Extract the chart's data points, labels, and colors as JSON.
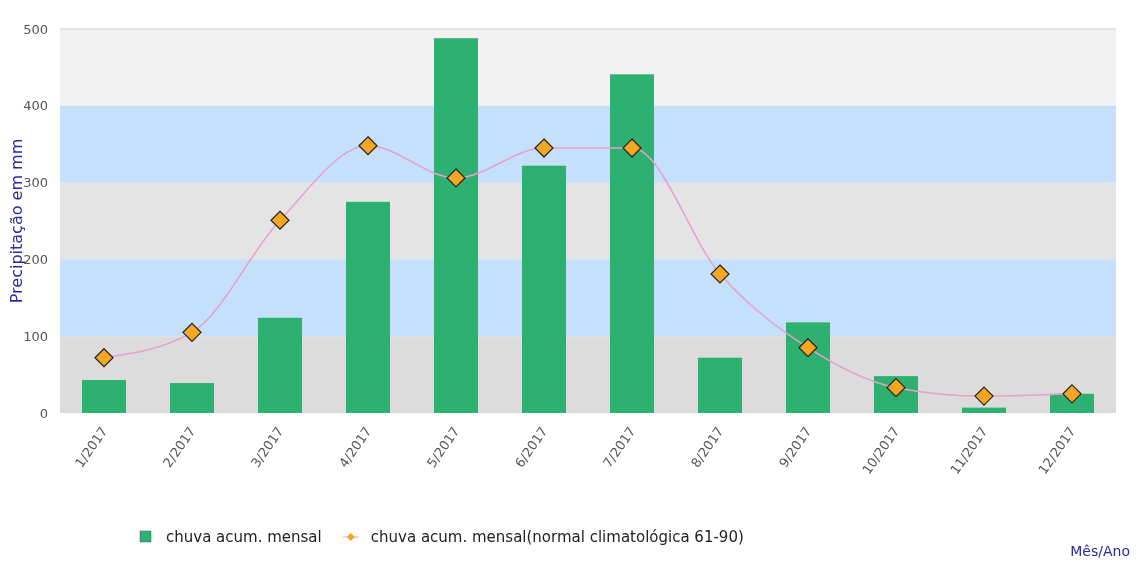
{
  "chart_data": {
    "type": "bar",
    "xlabel": "Mês/Ano",
    "ylabel": "Precipitação em mm",
    "categories": [
      "1/2017",
      "2/2017",
      "3/2017",
      "4/2017",
      "5/2017",
      "6/2017",
      "7/2017",
      "8/2017",
      "9/2017",
      "10/2017",
      "11/2017",
      "12/2017"
    ],
    "series": [
      {
        "name": "chuva acum. mensal",
        "color": "#2eb070",
        "values": [
          43,
          39,
          124,
          275,
          488,
          322,
          441,
          72,
          118,
          48,
          7,
          25
        ]
      },
      {
        "name": "chuva acum. mensal(normal climatológica 61-90)",
        "type": "line",
        "color": "#f5a623",
        "values": [
          72,
          105,
          251,
          348,
          306,
          345,
          345,
          181,
          85,
          33,
          22,
          25
        ]
      }
    ],
    "ylim": [
      0,
      500
    ],
    "yticks": [
      0,
      100,
      200,
      300,
      400,
      500
    ],
    "bands": [
      {
        "axis": "y",
        "from": 0,
        "to": 100,
        "color": "#dcdcdc"
      },
      {
        "axis": "y",
        "from": 200,
        "to": 300,
        "color": "#e4e4e4"
      },
      {
        "axis": "y",
        "from": 100,
        "to": 200,
        "color": "#c5e0fa"
      },
      {
        "axis": "y",
        "from": 300,
        "to": 400,
        "color": "#c5e0fa"
      }
    ],
    "legend": "bottom",
    "marker": "diamond",
    "line_style": "solid"
  }
}
